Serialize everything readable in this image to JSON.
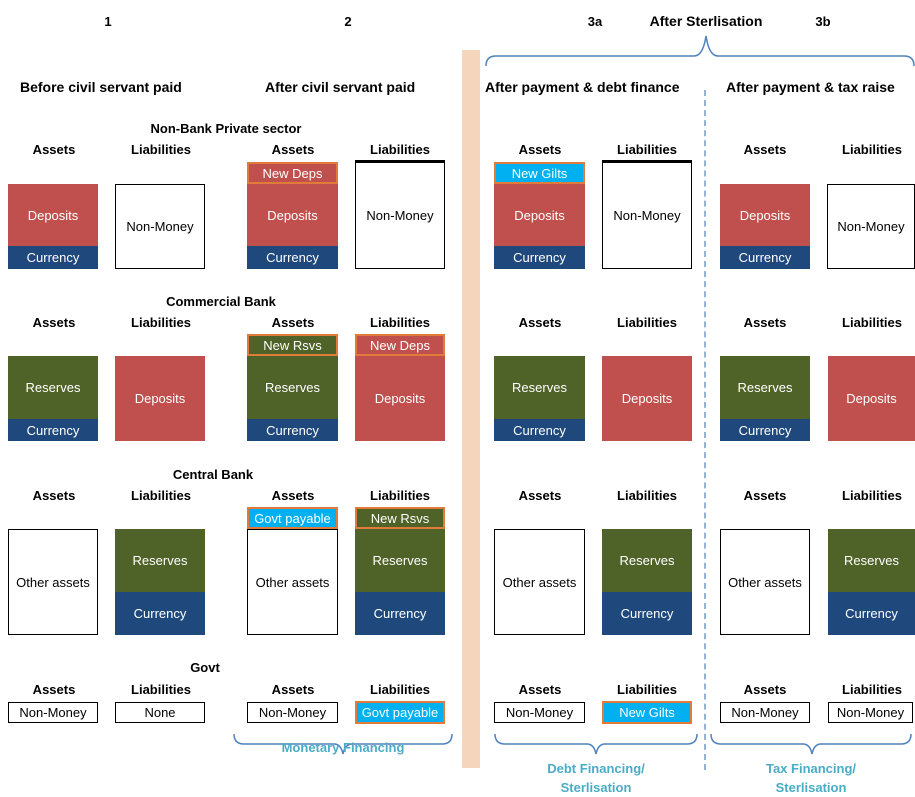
{
  "column_numbers": [
    "1",
    "2",
    "3a",
    "3b"
  ],
  "after_sterilisation": "After Sterlisation",
  "scenario_titles": {
    "before": "Before civil servant paid",
    "after": "After civil servant paid",
    "debt": "After payment & debt finance",
    "tax": "After payment & tax raise"
  },
  "sectors": {
    "nbps": "Non-Bank Private sector",
    "bank": "Commercial Bank",
    "cb": "Central Bank",
    "govt": "Govt"
  },
  "assets": "Assets",
  "liabilities": "Liabilities",
  "labels": {
    "deposits": "Deposits",
    "currency": "Currency",
    "non_money": "Non-Money",
    "reserves": "Reserves",
    "other_assets": "Other assets",
    "none": "None",
    "new_deps": "New Deps",
    "new_gilts": "New Gilts",
    "new_rsvs": "New Rsvs",
    "govt_payable": "Govt payable"
  },
  "brace_labels": {
    "monetary": "Monetary Financing",
    "debt_line1": "Debt Financing/",
    "debt_line2": "Sterlisation",
    "tax_line1": "Tax Financing/",
    "tax_line2": "Sterlisation"
  },
  "colors": {
    "deposits": "#c0504d",
    "currency": "#1f497d",
    "reserves": "#4f6228",
    "new_items": "#00b0f0",
    "highlight_border": "#e07b39",
    "brace_labels": "#4bacc6",
    "divider": "#f5d6bd",
    "dashed_line": "#95b3d7"
  }
}
